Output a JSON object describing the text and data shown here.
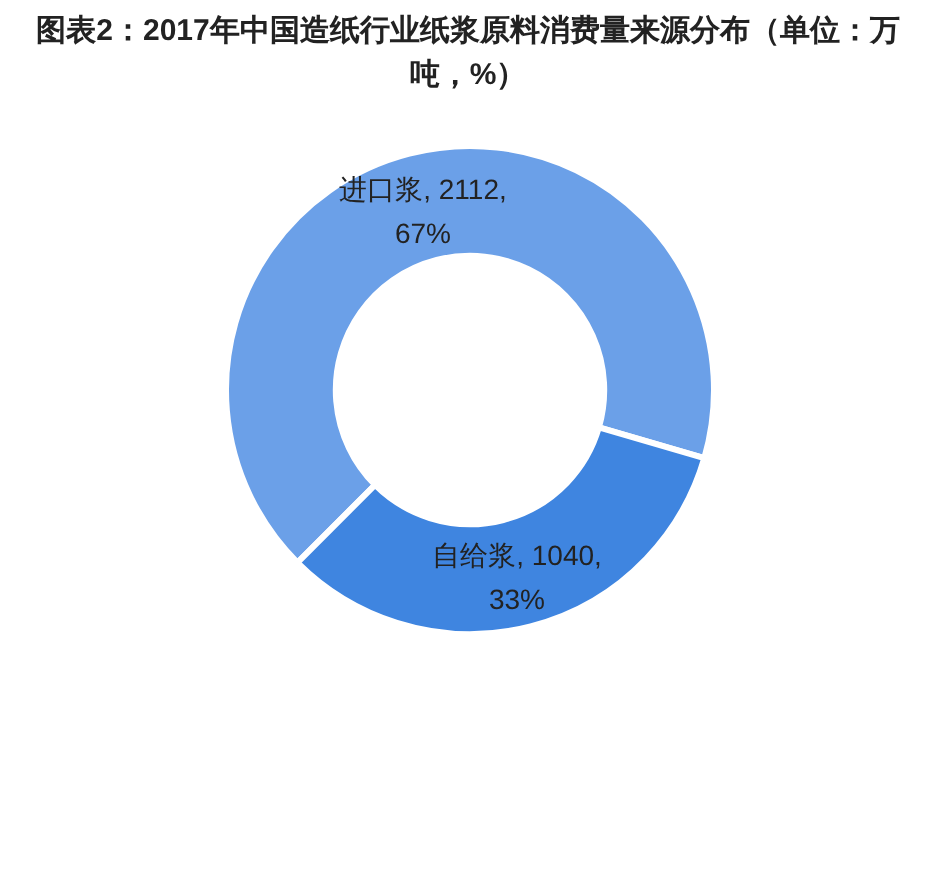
{
  "chart_data": {
    "type": "donut",
    "title": "图表2：2017年中国造纸行业纸浆原料消费量来源分布（单位：万吨，%）",
    "categories": [
      "进口浆",
      "自给浆"
    ],
    "values": [
      67,
      33
    ],
    "value_labels": [
      ", 2112, 67%",
      ", 1040, 33%"
    ],
    "colors": [
      "#6ba0e8",
      "#3f85e0"
    ],
    "legend": false
  }
}
